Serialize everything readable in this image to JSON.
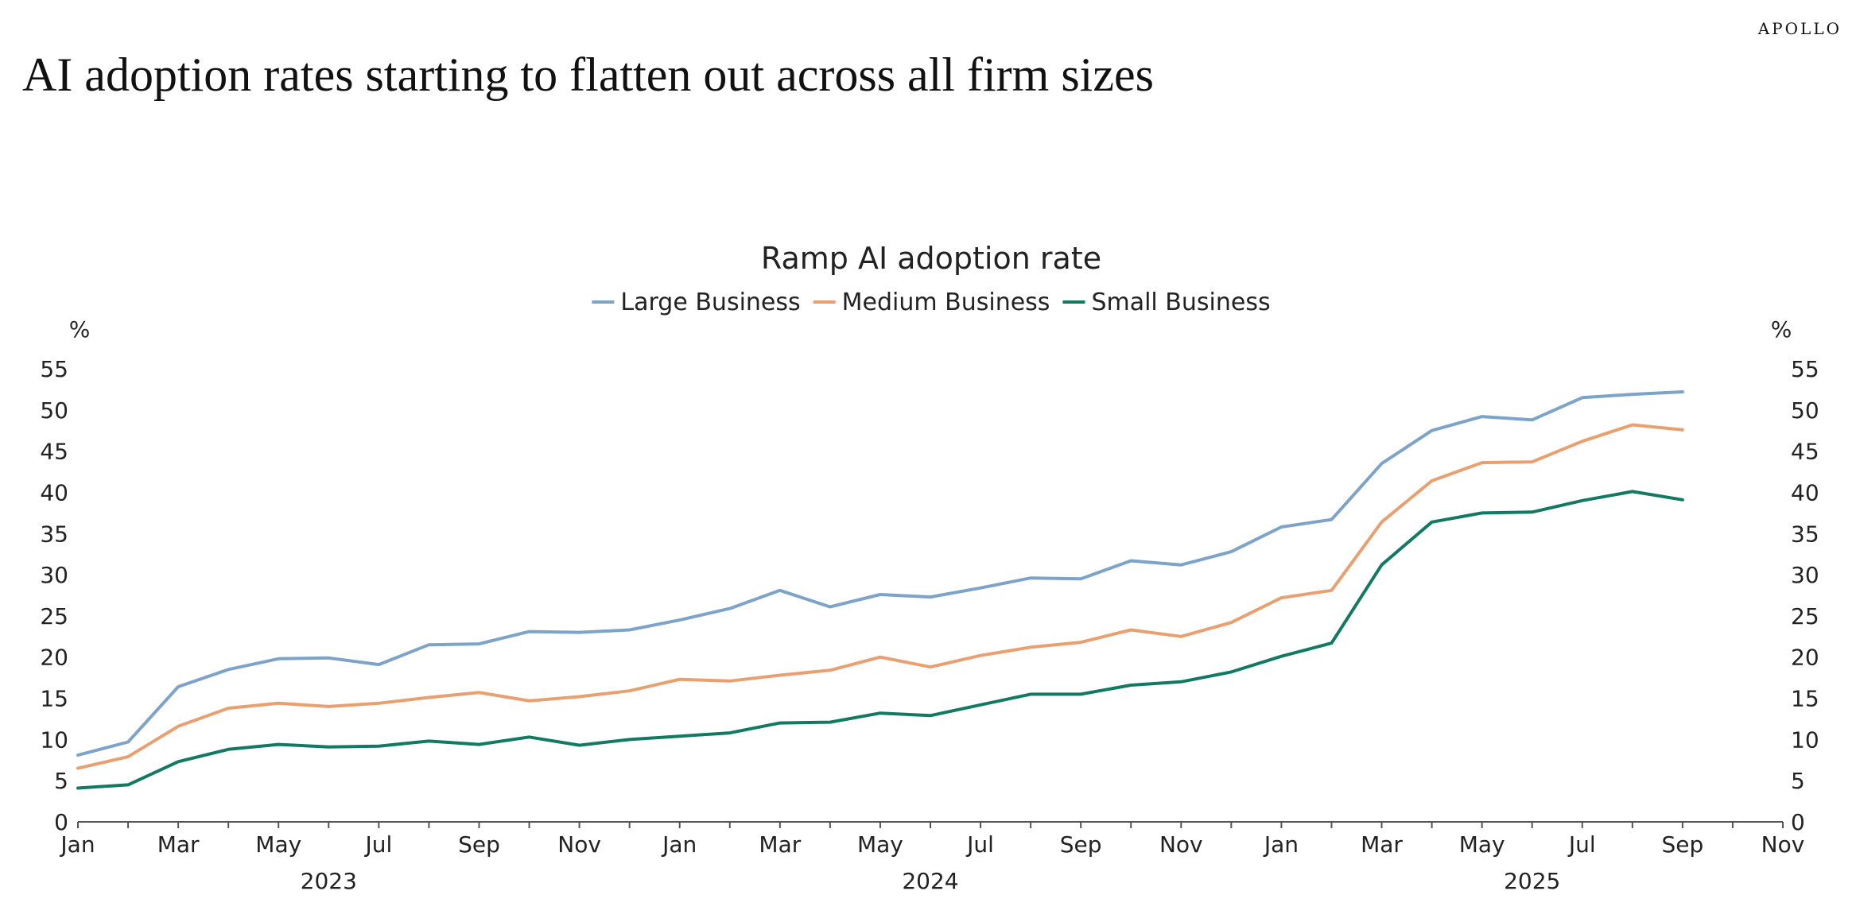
{
  "brand": "APOLLO",
  "headline": "AI adoption rates starting to flatten out across all firm sizes",
  "chart_data": {
    "type": "line",
    "title": "Ramp AI adoption rate",
    "ylabel_left": "%",
    "ylabel_right": "%",
    "ylim": [
      0,
      55
    ],
    "yticks": [
      0,
      5,
      10,
      15,
      20,
      25,
      30,
      35,
      40,
      45,
      50,
      55
    ],
    "x_axis": {
      "start": "2023-01",
      "end": "2025-11",
      "tick_labels": [
        "Jan",
        "Mar",
        "May",
        "Jul",
        "Sep",
        "Nov",
        "Jan",
        "Mar",
        "May",
        "Jul",
        "Sep",
        "Nov",
        "Jan",
        "Mar",
        "May",
        "Jul",
        "Sep",
        "Nov"
      ],
      "year_labels": [
        "2023",
        "2024",
        "2025"
      ]
    },
    "legend_position": "top-center",
    "x": [
      "2023-01",
      "2023-02",
      "2023-03",
      "2023-04",
      "2023-05",
      "2023-06",
      "2023-07",
      "2023-08",
      "2023-09",
      "2023-10",
      "2023-11",
      "2023-12",
      "2024-01",
      "2024-02",
      "2024-03",
      "2024-04",
      "2024-05",
      "2024-06",
      "2024-07",
      "2024-08",
      "2024-09",
      "2024-10",
      "2024-11",
      "2024-12",
      "2025-01",
      "2025-02",
      "2025-03",
      "2025-04",
      "2025-05",
      "2025-06",
      "2025-07",
      "2025-08",
      "2025-09"
    ],
    "series": [
      {
        "name": "Large Business",
        "color": "#7da3c9",
        "values": [
          8.1,
          9.7,
          16.4,
          18.5,
          19.8,
          19.9,
          19.1,
          21.5,
          21.6,
          23.1,
          23.0,
          23.3,
          24.5,
          25.9,
          28.1,
          26.1,
          27.6,
          27.3,
          28.4,
          29.6,
          29.5,
          31.7,
          31.2,
          32.8,
          35.8,
          36.7,
          43.5,
          47.5,
          49.2,
          48.8,
          51.5,
          51.9,
          52.2
        ]
      },
      {
        "name": "Medium Business",
        "color": "#e9a071",
        "values": [
          6.5,
          7.9,
          11.6,
          13.8,
          14.4,
          14.0,
          14.4,
          15.1,
          15.7,
          14.7,
          15.2,
          15.9,
          17.3,
          17.1,
          17.8,
          18.4,
          20.0,
          18.8,
          20.2,
          21.2,
          21.8,
          23.3,
          22.5,
          24.2,
          27.2,
          28.1,
          36.4,
          41.4,
          43.6,
          43.7,
          46.2,
          48.2,
          47.6
        ]
      },
      {
        "name": "Small Business",
        "color": "#127a62",
        "values": [
          4.1,
          4.5,
          7.3,
          8.8,
          9.4,
          9.1,
          9.2,
          9.8,
          9.4,
          10.3,
          9.3,
          10.0,
          10.4,
          10.8,
          12.0,
          12.1,
          13.2,
          12.9,
          14.2,
          15.5,
          15.5,
          16.6,
          17.0,
          18.2,
          20.1,
          21.7,
          31.2,
          36.4,
          37.5,
          37.6,
          39.0,
          40.1,
          39.1
        ]
      }
    ]
  }
}
